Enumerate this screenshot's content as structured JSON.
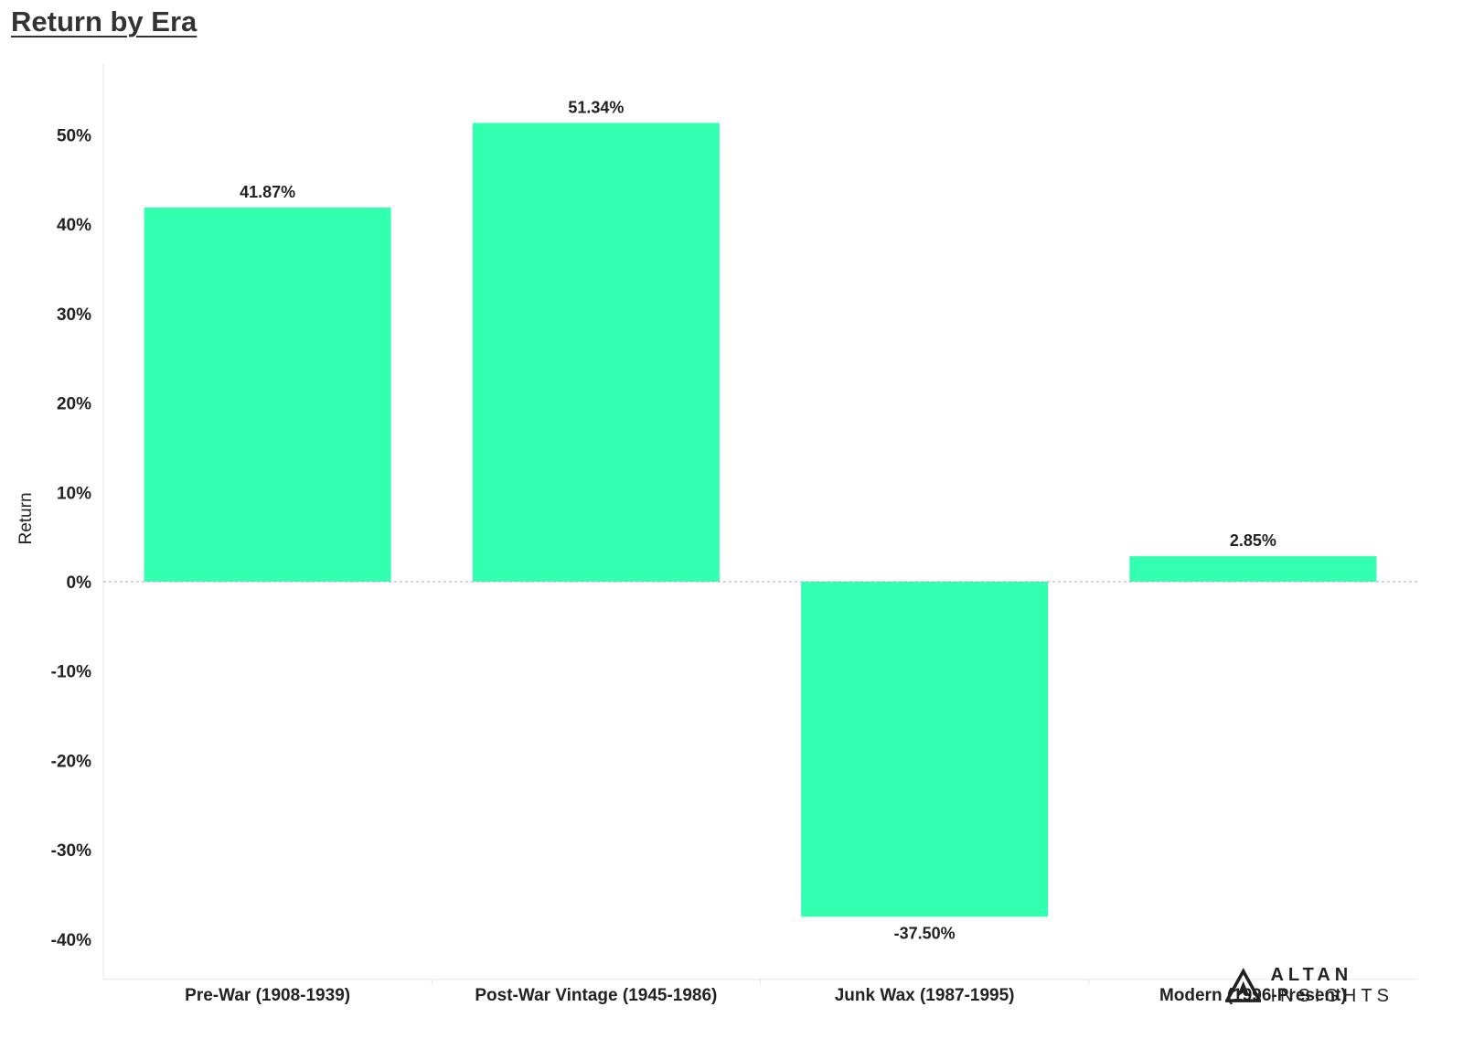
{
  "title": "Return by Era",
  "logo": {
    "brand_bold": "ALTAN",
    "brand_light": "INSIGHTS",
    "icon": "altan-triangle-logo-icon"
  },
  "chart_data": {
    "type": "bar",
    "title": "Return by Era",
    "xlabel": "",
    "ylabel": "Return",
    "categories": [
      "Pre-War (1908-1939)",
      "Post-War Vintage (1945-1986)",
      "Junk Wax (1987-1995)",
      "Modern (1996-Present)"
    ],
    "values": [
      41.87,
      51.34,
      -37.5,
      2.85
    ],
    "data_labels": [
      "41.87%",
      "51.34%",
      "-37.50%",
      "2.85%"
    ],
    "yticks": [
      50,
      40,
      30,
      20,
      10,
      0,
      -10,
      -20,
      -30,
      -40
    ],
    "ytick_labels": [
      "50%",
      "40%",
      "30%",
      "20%",
      "10%",
      "0%",
      "-10%",
      "-20%",
      "-30%",
      "-40%"
    ],
    "ylim": [
      -44.5,
      58
    ],
    "bar_color": "#33ffb0",
    "grid": false,
    "zero_line": "dashed"
  }
}
